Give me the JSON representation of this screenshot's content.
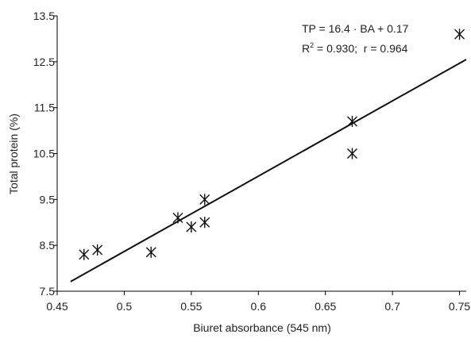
{
  "chart_data": {
    "type": "scatter",
    "x_label": "Biuret absorbance (545 nm)",
    "y_label": "Total protein (%)",
    "series": [
      {
        "color": "#111111",
        "x": [
          0.47,
          0.48,
          0.52,
          0.54,
          0.55,
          0.56,
          0.56,
          0.67,
          0.67,
          0.75
        ],
        "values": [
          8.3,
          8.4,
          8.35,
          9.1,
          8.9,
          9.5,
          9.0,
          11.2,
          10.5,
          13.1
        ]
      }
    ],
    "fit_line": {
      "x": [
        0.46,
        0.755
      ],
      "values": [
        7.71,
        12.55
      ],
      "color": "#111111"
    },
    "annotations": [
      "TP = 16.4 · BA + 0.17",
      [
        "R",
        "2",
        " = 0.930;  r = 0.964"
      ]
    ],
    "xlim": [
      0.45,
      0.755
    ],
    "xticks": [
      0.45,
      0.5,
      0.55,
      0.6,
      0.65,
      0.7,
      0.75
    ],
    "ylim": [
      7.5,
      13.5
    ],
    "yticks": [
      7.5,
      8.5,
      9.5,
      10.5,
      11.5,
      12.5,
      13.5
    ],
    "grid": false
  }
}
